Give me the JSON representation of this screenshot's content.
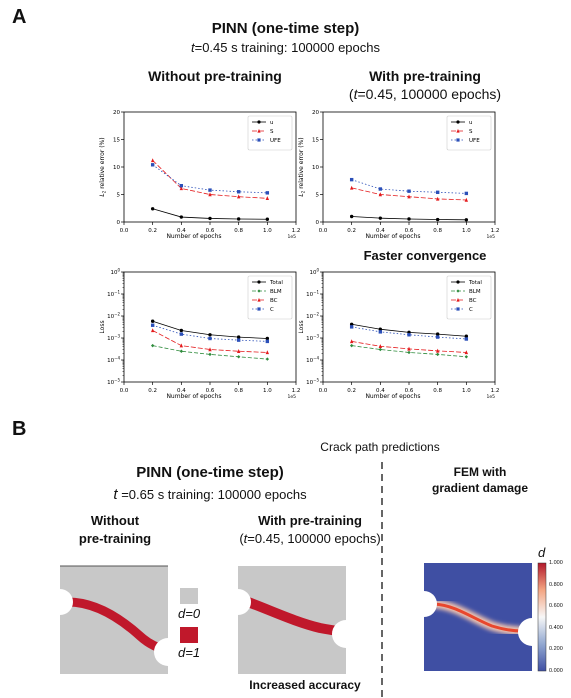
{
  "panelA": {
    "letter": "A",
    "title": "PINN (one-time step)",
    "subtitle_t": "t",
    "subtitle_rest": "=0.45 s    training: 100000 epochs",
    "col_left": "Without pre-training",
    "col_right_line1": "With pre-training",
    "col_right_line2_open": "(",
    "col_right_line2_t": "t",
    "col_right_line2_rest": "=0.45, 100000 epochs)",
    "faster_caption": "Faster convergence"
  },
  "panelB": {
    "letter": "B",
    "crack_title": "Crack path predictions",
    "title": "PINN (one-time step)",
    "subtitle_t": "t",
    "subtitle_rest": " =0.65 s    training: 100000 epochs",
    "col_left_line1": "Without",
    "col_left_line2": "pre-training",
    "col_right_line1": "With pre-training",
    "col_right_line2_open": "(",
    "col_right_line2_t": "t",
    "col_right_line2_rest": "=0.45, 100000 epochs)",
    "fem_line1": "FEM with",
    "fem_line2": "gradient damage",
    "legend_d0": "d=0",
    "legend_d1": "d=1",
    "accuracy_caption": "Increased accuracy",
    "colorbar_label": "d",
    "colorbar_ticks": [
      "1.000",
      "0.800",
      "0.600",
      "0.400",
      "0.200",
      "0.000"
    ],
    "colors": {
      "intact": "#c8c8c8",
      "crack": "#c0182b",
      "fem_bg": "#3f4fa3",
      "fem_crack": "#e8472e"
    }
  },
  "chart_data": [
    {
      "type": "line",
      "id": "err_without",
      "title": "",
      "xlabel": "Number of epochs",
      "ylabel": "L2 relative error (%)",
      "x_exponent": "1e5",
      "xlim": [
        0.0,
        1.2
      ],
      "ylim": [
        0,
        20
      ],
      "xticks": [
        0.0,
        0.2,
        0.4,
        0.6,
        0.8,
        1.0,
        1.2
      ],
      "yticks": [
        0,
        5,
        10,
        15,
        20
      ],
      "log_y": false,
      "grid": false,
      "legend": "top-right",
      "x": [
        0.2,
        0.4,
        0.6,
        0.8,
        1.0
      ],
      "series": [
        {
          "name": "u",
          "color": "#000000",
          "marker": "circle",
          "dash": "",
          "values": [
            2.4,
            0.9,
            0.65,
            0.55,
            0.5
          ]
        },
        {
          "name": "S",
          "color": "#e41a1c",
          "marker": "triangle",
          "dash": "5,2",
          "values": [
            11.2,
            6.1,
            5.0,
            4.6,
            4.3
          ]
        },
        {
          "name": "UFE",
          "color": "#2b4fb8",
          "marker": "square",
          "dash": "1.5,2",
          "values": [
            10.4,
            6.6,
            5.8,
            5.5,
            5.3
          ]
        }
      ]
    },
    {
      "type": "line",
      "id": "err_with",
      "title": "",
      "xlabel": "Number of epochs",
      "ylabel": "L2 relative error (%)",
      "x_exponent": "1e5",
      "xlim": [
        0.0,
        1.2
      ],
      "ylim": [
        0,
        20
      ],
      "xticks": [
        0.0,
        0.2,
        0.4,
        0.6,
        0.8,
        1.0,
        1.2
      ],
      "yticks": [
        0,
        5,
        10,
        15,
        20
      ],
      "log_y": false,
      "grid": false,
      "legend": "top-right",
      "x": [
        0.2,
        0.4,
        0.6,
        0.8,
        1.0
      ],
      "series": [
        {
          "name": "u",
          "color": "#000000",
          "marker": "circle",
          "dash": "",
          "values": [
            1.0,
            0.7,
            0.55,
            0.45,
            0.4
          ]
        },
        {
          "name": "S",
          "color": "#e41a1c",
          "marker": "triangle",
          "dash": "5,2",
          "values": [
            6.2,
            5.0,
            4.6,
            4.2,
            4.0
          ]
        },
        {
          "name": "UFE",
          "color": "#2b4fb8",
          "marker": "square",
          "dash": "1.5,2",
          "values": [
            7.7,
            6.0,
            5.6,
            5.4,
            5.2
          ]
        }
      ]
    },
    {
      "type": "line",
      "id": "loss_without",
      "title": "",
      "xlabel": "Number of epochs",
      "ylabel": "Loss",
      "x_exponent": "1e5",
      "xlim": [
        0.0,
        1.2
      ],
      "ylim_exp": [
        -5,
        0
      ],
      "xticks": [
        0.0,
        0.2,
        0.4,
        0.6,
        0.8,
        1.0,
        1.2
      ],
      "ytick_exps": [
        -5,
        -4,
        -3,
        -2,
        -1,
        0
      ],
      "log_y": true,
      "grid": false,
      "legend": "top-right",
      "x": [
        0.2,
        0.4,
        0.6,
        0.8,
        1.0
      ],
      "series": [
        {
          "name": "Total",
          "color": "#000000",
          "marker": "circle",
          "dash": "",
          "values": [
            0.0058,
            0.0022,
            0.0014,
            0.0011,
            0.00095
          ]
        },
        {
          "name": "BLM",
          "color": "#2e8b3c",
          "marker": "diamond",
          "dash": "4,2",
          "values": [
            0.00045,
            0.00025,
            0.00018,
            0.00014,
            0.00011
          ]
        },
        {
          "name": "BC",
          "color": "#e41a1c",
          "marker": "triangle",
          "dash": "5,2",
          "values": [
            0.0022,
            0.00045,
            0.0003,
            0.00025,
            0.00022
          ]
        },
        {
          "name": "C",
          "color": "#2b4fb8",
          "marker": "square",
          "dash": "1.5,2",
          "values": [
            0.0038,
            0.0015,
            0.00095,
            0.0008,
            0.0007
          ]
        }
      ]
    },
    {
      "type": "line",
      "id": "loss_with",
      "title": "",
      "xlabel": "Number of epochs",
      "ylabel": "Loss",
      "x_exponent": "1e5",
      "xlim": [
        0.0,
        1.2
      ],
      "ylim_exp": [
        -5,
        0
      ],
      "xticks": [
        0.0,
        0.2,
        0.4,
        0.6,
        0.8,
        1.0,
        1.2
      ],
      "ytick_exps": [
        -5,
        -4,
        -3,
        -2,
        -1,
        0
      ],
      "log_y": true,
      "grid": false,
      "legend": "top-right",
      "x": [
        0.2,
        0.4,
        0.6,
        0.8,
        1.0
      ],
      "series": [
        {
          "name": "Total",
          "color": "#000000",
          "marker": "circle",
          "dash": "",
          "values": [
            0.0042,
            0.0025,
            0.0018,
            0.0015,
            0.0012
          ]
        },
        {
          "name": "BLM",
          "color": "#2e8b3c",
          "marker": "diamond",
          "dash": "4,2",
          "values": [
            0.00045,
            0.0003,
            0.00022,
            0.00018,
            0.00014
          ]
        },
        {
          "name": "BC",
          "color": "#e41a1c",
          "marker": "triangle",
          "dash": "5,2",
          "values": [
            0.0007,
            0.00042,
            0.00032,
            0.00026,
            0.00022
          ]
        },
        {
          "name": "C",
          "color": "#2b4fb8",
          "marker": "square",
          "dash": "1.5,2",
          "values": [
            0.0032,
            0.0019,
            0.0014,
            0.0011,
            0.0009
          ]
        }
      ]
    }
  ]
}
